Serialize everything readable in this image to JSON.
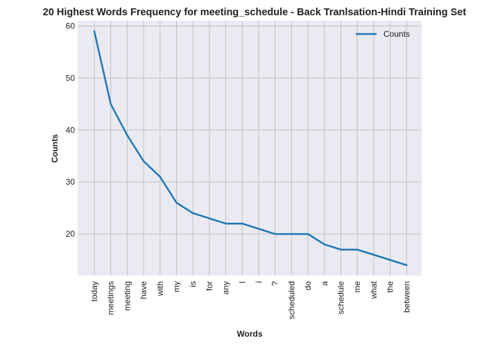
{
  "chart_data": {
    "type": "line",
    "title": "20 Highest Words Frequency for meeting_schedule - Back Tranlsation-Hindi Training Set",
    "xlabel": "Words",
    "ylabel": "Counts",
    "categories": [
      "today",
      "meetings",
      "meeting",
      "have",
      "with",
      "my",
      "is",
      "for",
      "any",
      "I",
      "i",
      "?",
      "scheduled",
      "do",
      "a",
      "schedule",
      "me",
      "what",
      "the",
      "between"
    ],
    "series": [
      {
        "name": "Counts",
        "values": [
          59,
          45,
          39,
          34,
          31,
          26,
          24,
          23,
          22,
          22,
          21,
          20,
          20,
          20,
          18,
          17,
          17,
          16,
          15,
          14
        ],
        "color": "#1f77b4"
      }
    ],
    "ylim": [
      12,
      61
    ],
    "yticks": [
      20,
      30,
      40,
      50,
      60
    ],
    "grid": true,
    "legend_position": "top-right",
    "background": "#eaeaf2",
    "grid_color": "#c0c0c0"
  }
}
